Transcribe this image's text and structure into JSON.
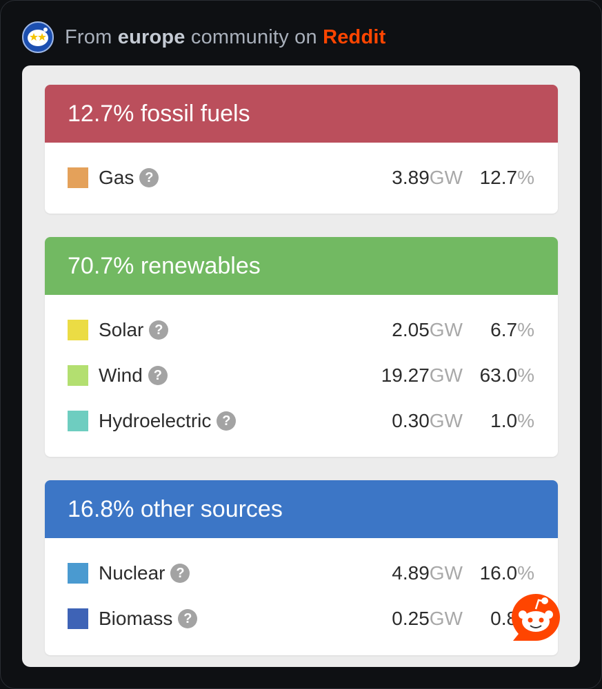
{
  "header": {
    "prefix": "From",
    "community": "europe",
    "middle": "community on",
    "platform": "Reddit"
  },
  "units": {
    "power": "GW",
    "percent": "%"
  },
  "colors": {
    "fossil_header": "#bb4f5c",
    "renewables_header": "#72b962",
    "other_header": "#3c76c6",
    "gas": "#e4a15a",
    "solar": "#ebdc44",
    "wind": "#b3df70",
    "hydro": "#6ecdc0",
    "nuclear": "#4a9ad0",
    "biomass": "#3e63b6",
    "reddit_orange": "#ff4500"
  },
  "groups": [
    {
      "title": "12.7% fossil fuels",
      "sources": [
        {
          "name": "Gas",
          "icon": "help-icon",
          "power": "3.89",
          "share": "12.7"
        }
      ]
    },
    {
      "title": "70.7% renewables",
      "sources": [
        {
          "name": "Solar",
          "icon": "help-icon",
          "power": "2.05",
          "share": "6.7"
        },
        {
          "name": "Wind",
          "icon": "help-icon",
          "power": "19.27",
          "share": "63.0"
        },
        {
          "name": "Hydroelectric",
          "icon": "help-icon",
          "power": "0.30",
          "share": "1.0"
        }
      ]
    },
    {
      "title": "16.8% other sources",
      "sources": [
        {
          "name": "Nuclear",
          "icon": "help-icon",
          "power": "4.89",
          "share": "16.0"
        },
        {
          "name": "Biomass",
          "icon": "help-icon",
          "power": "0.25",
          "share": "0.8"
        }
      ]
    }
  ],
  "help_glyph": "?"
}
